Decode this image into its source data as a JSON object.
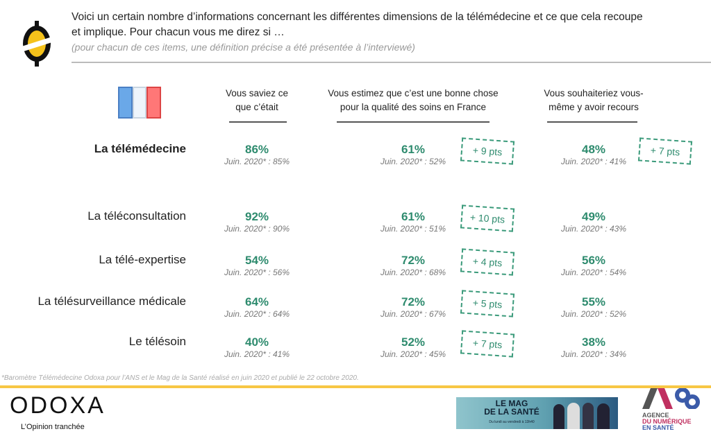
{
  "header": {
    "line1": "Voici un certain nombre d’informations concernant les différentes dimensions de la télémédecine et ce que cela recoupe",
    "line2": "et implique. Pour chacun vous me direz si …",
    "subtitle": "(pour chacun de ces items, une définition précise a été présentée à l’interviewé)"
  },
  "columns": [
    "Vous saviez ce que c’était",
    "Vous estimez que c’est une bonne chose pour la qualité des soins en France",
    "Vous souhaiteriez vous-même y avoir recours"
  ],
  "columns_lines": [
    [
      "Vous saviez ce",
      "que c’était"
    ],
    [
      "Vous estimez que c’est une bonne chose",
      "pour la qualité des soins en France"
    ],
    [
      "Vous souhaiteriez vous-",
      "même y avoir recours"
    ]
  ],
  "rows": [
    {
      "label": "La télémédecine",
      "c1": "86%",
      "c1s": "Juin. 2020* : 85%",
      "c2": "61%",
      "c2s": "Juin. 2020* : 52%",
      "b2": "+ 9 pts",
      "c3": "48%",
      "c3s": "Juin. 2020* : 41%",
      "b3": "+ 7 pts"
    },
    {
      "label": "La téléconsultation",
      "c1": "92%",
      "c1s": "Juin. 2020* : 90%",
      "c2": "61%",
      "c2s": "Juin. 2020* : 51%",
      "b2": "+ 10 pts",
      "c3": "49%",
      "c3s": "Juin. 2020* : 43%"
    },
    {
      "label": "La télé-expertise",
      "c1": "54%",
      "c1s": "Juin. 2020* : 56%",
      "c2": "72%",
      "c2s": "Juin. 2020* : 68%",
      "b2": "+ 4 pts",
      "c3": "56%",
      "c3s": "Juin. 2020* : 54%"
    },
    {
      "label": "La télésurveillance médicale",
      "c1": "64%",
      "c1s": "Juin. 2020* : 64%",
      "c2": "72%",
      "c2s": "Juin. 2020* : 67%",
      "b2": "+ 5 pts",
      "c3": "55%",
      "c3s": "Juin. 2020* : 52%"
    },
    {
      "label": "Le télésoin",
      "c1": "40%",
      "c1s": "Juin. 2020* : 41%",
      "c2": "52%",
      "c2s": "Juin. 2020* : 45%",
      "b2": "+ 7 pts",
      "c3": "38%",
      "c3s": "Juin. 2020* : 34%"
    }
  ],
  "footnote": "*Baromètre Télémédecine Odoxa pour l’ANS et le Mag de la Santé réalisé en juin 2020 et publié le 22 octobre 2020.",
  "logos": {
    "odoxa": "ODOXA",
    "odoxa_tagline": "L’Opinion tranchée",
    "mag": "LE MAG DE LA SANTÉ",
    "mag_line1": "LE MAG",
    "mag_line2": "DE LA SANTÉ",
    "mag_sub": "Du lundi au vendredi à 13h40",
    "ans_line1": "AGENCE",
    "ans_line2": "DU NUMÉRIQUE",
    "ans_line3": "EN SANTÉ"
  },
  "colors": {
    "accent": "#2e8b6e",
    "yellow": "#f7c744"
  }
}
